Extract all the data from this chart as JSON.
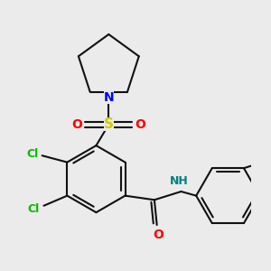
{
  "bg_color": "#ebebeb",
  "atom_colors": {
    "N_pyrrolidine": "#0000ff",
    "N_amide": "#008080",
    "S": "#cccc00",
    "O": "#ff0000",
    "Cl": "#00bb00",
    "I": "#cc44cc"
  },
  "bond_color": "#111111",
  "bond_lw": 1.5,
  "figsize": [
    3.0,
    3.0
  ],
  "dpi": 100
}
